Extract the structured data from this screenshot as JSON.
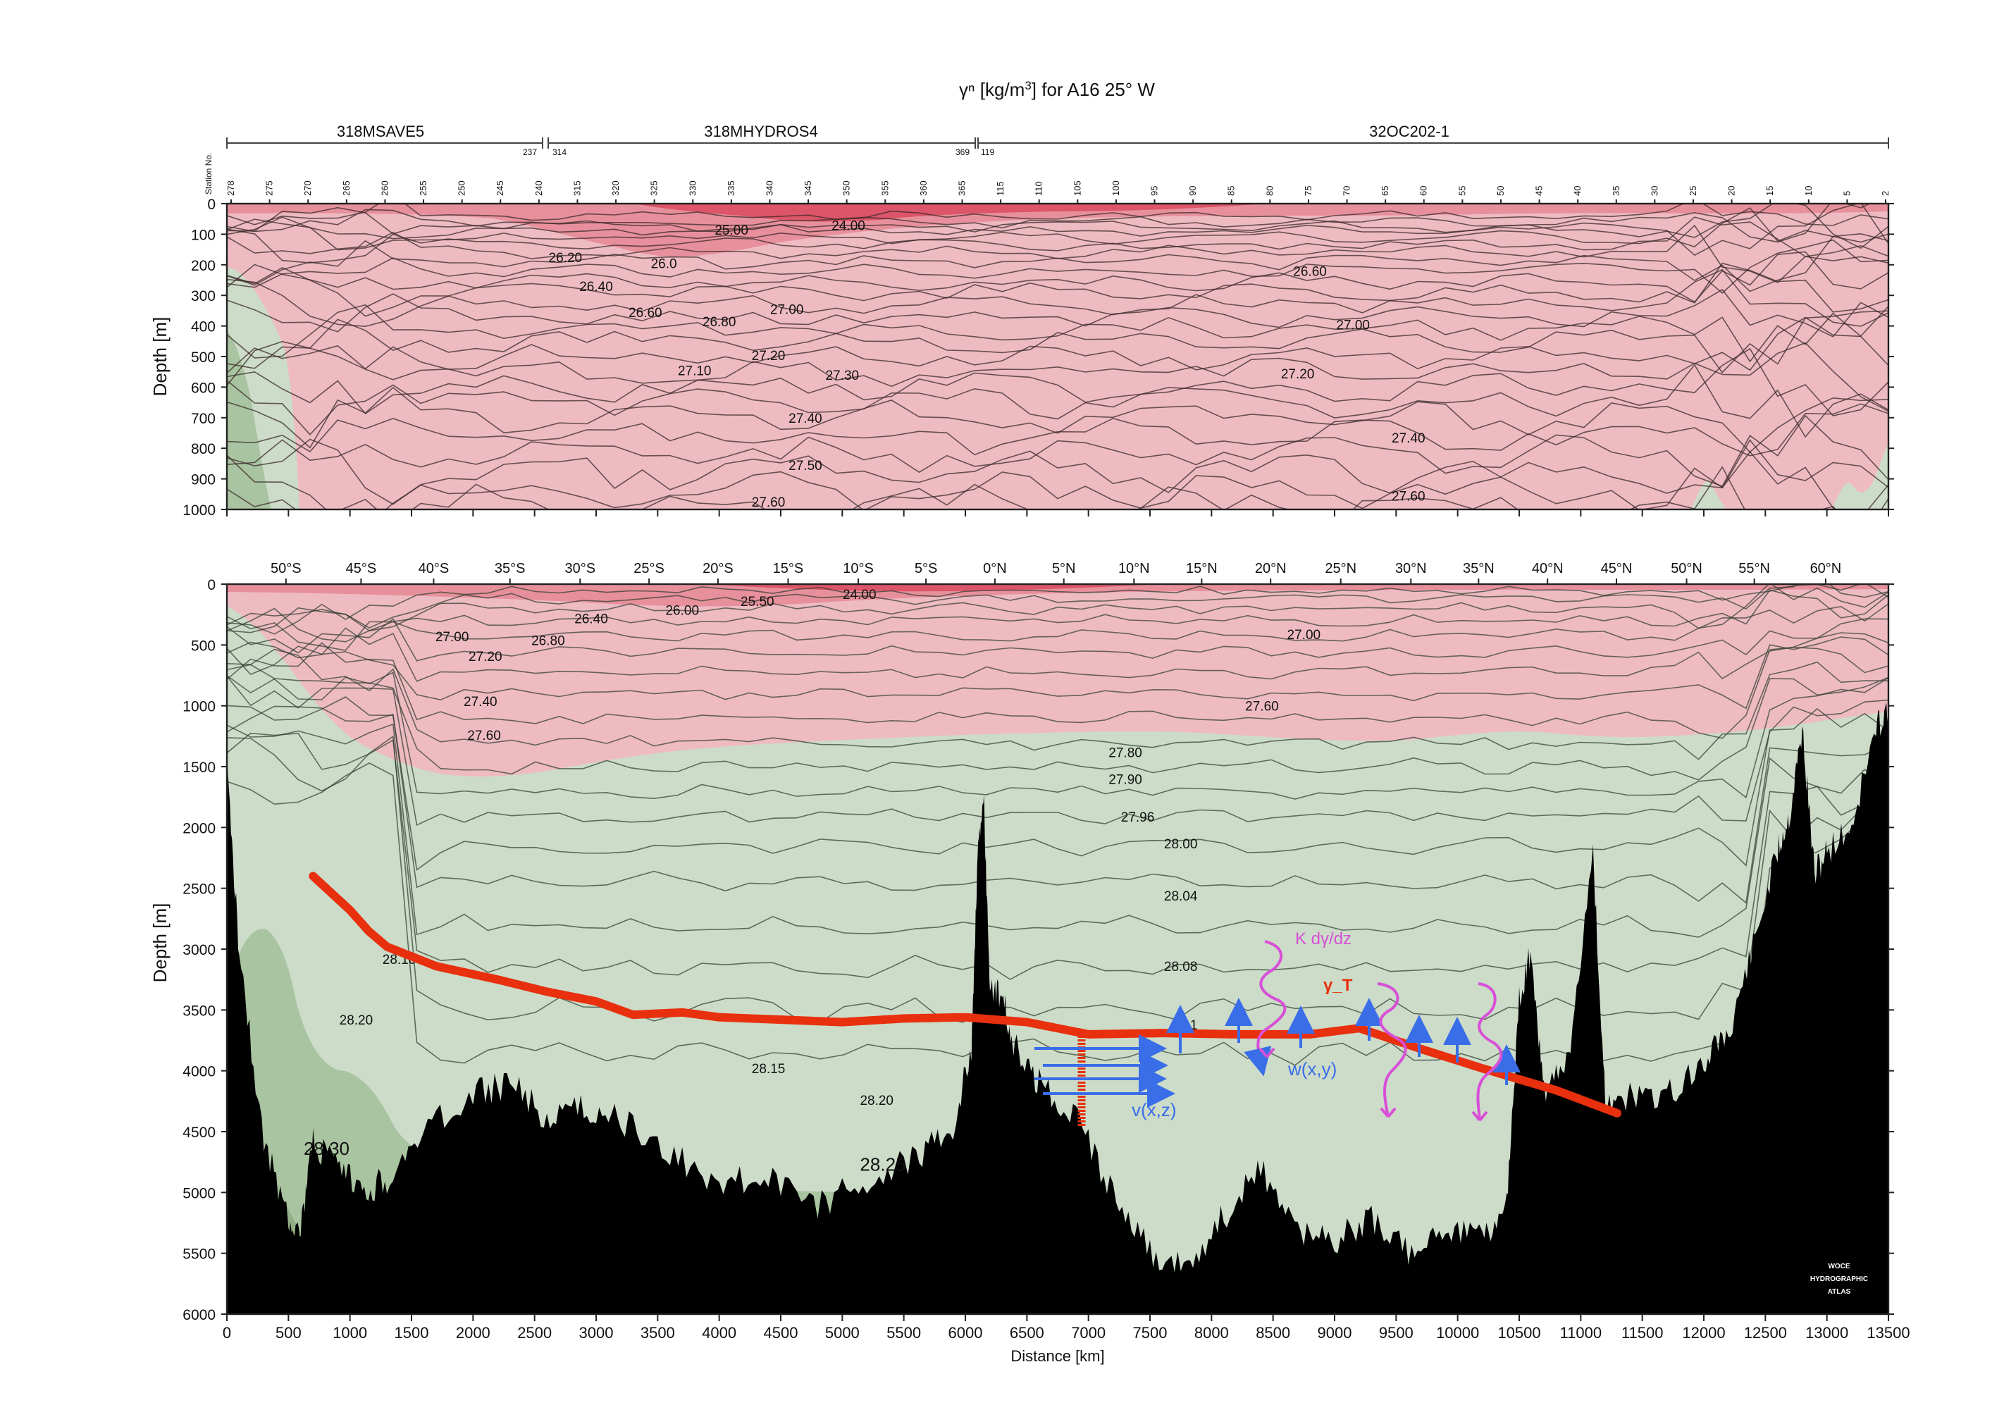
{
  "figure": {
    "title_prefix": "γⁿ [kg/m",
    "title_sup": "3",
    "title_suffix": "] for A16 25° W",
    "cruises": [
      {
        "label": "318MSAVE5",
        "end_station": "237"
      },
      {
        "label": "318MHYDROS4",
        "start_station": "314",
        "end_station": "369"
      },
      {
        "label": "32OC202-1",
        "start_station": "119"
      }
    ],
    "station_axis_label": "Station No.",
    "stations": [
      "278",
      "275",
      "270",
      "265",
      "260",
      "255",
      "250",
      "245",
      "240",
      "315",
      "320",
      "325",
      "330",
      "335",
      "340",
      "345",
      "350",
      "355",
      "360",
      "365",
      "115",
      "110",
      "105",
      "100",
      "95",
      "90",
      "85",
      "80",
      "75",
      "70",
      "65",
      "60",
      "55",
      "50",
      "45",
      "40",
      "35",
      "30",
      "25",
      "20",
      "15",
      "10",
      "5",
      "2"
    ],
    "watermark": [
      "WOCE",
      "HYDROGRAPHIC",
      "ATLAS"
    ]
  },
  "colors": {
    "surface_red": "#e0566a",
    "mid_red": "#e7909c",
    "light_red": "#eebbc3",
    "pale_green": "#ccdcc9",
    "mid_green": "#a9c4a0",
    "dark_green": "#93b087",
    "bottom": "#000000",
    "annotation_red": "#e8300e",
    "annotation_blue": "#3a6de8",
    "annotation_magenta": "#d84fd8"
  },
  "chart_data": [
    {
      "type": "heatmap",
      "panel": "upper",
      "xlabel": "",
      "ylabel": "Depth [m]",
      "xlim": [
        0,
        13500
      ],
      "ylim": [
        1000,
        0
      ],
      "yticks": [
        "0",
        "100",
        "200",
        "300",
        "400",
        "500",
        "600",
        "700",
        "800",
        "900",
        "1000"
      ],
      "contour_labels": [
        {
          "text": "25.00",
          "x": 4100,
          "depth": 85
        },
        {
          "text": "24.00",
          "x": 5050,
          "depth": 70
        },
        {
          "text": "26.20",
          "x": 2750,
          "depth": 175
        },
        {
          "text": "26.0",
          "x": 3550,
          "depth": 195
        },
        {
          "text": "26.40",
          "x": 3000,
          "depth": 270
        },
        {
          "text": "26.60",
          "x": 3400,
          "depth": 355
        },
        {
          "text": "26.80",
          "x": 4000,
          "depth": 385
        },
        {
          "text": "27.00",
          "x": 4550,
          "depth": 345
        },
        {
          "text": "27.20",
          "x": 4400,
          "depth": 495
        },
        {
          "text": "27.10",
          "x": 3800,
          "depth": 545
        },
        {
          "text": "27.30",
          "x": 5000,
          "depth": 560
        },
        {
          "text": "27.40",
          "x": 4700,
          "depth": 700
        },
        {
          "text": "27.50",
          "x": 4700,
          "depth": 855
        },
        {
          "text": "27.60",
          "x": 4400,
          "depth": 975
        },
        {
          "text": "26.60",
          "x": 8800,
          "depth": 220
        },
        {
          "text": "27.00",
          "x": 9150,
          "depth": 395
        },
        {
          "text": "27.20",
          "x": 8700,
          "depth": 555
        },
        {
          "text": "27.40",
          "x": 9600,
          "depth": 765
        },
        {
          "text": "27.60",
          "x": 9600,
          "depth": 955
        }
      ]
    },
    {
      "type": "heatmap",
      "panel": "lower",
      "xlabel": "Distance [km]",
      "ylabel": "Depth [m]",
      "xlim": [
        0,
        13500
      ],
      "ylim": [
        6000,
        0
      ],
      "xticks": [
        "0",
        "500",
        "1000",
        "1500",
        "2000",
        "2500",
        "3000",
        "3500",
        "4000",
        "4500",
        "5000",
        "5500",
        "6000",
        "6500",
        "7000",
        "7500",
        "8000",
        "8500",
        "9000",
        "9500",
        "10000",
        "10500",
        "11000",
        "11500",
        "12000",
        "12500",
        "13000",
        "13500"
      ],
      "yticks": [
        "0",
        "500",
        "1000",
        "1500",
        "2000",
        "2500",
        "3000",
        "3500",
        "4000",
        "4500",
        "5000",
        "5500",
        "6000"
      ],
      "latitude_ticks": [
        {
          "label": "50°S",
          "x": 480
        },
        {
          "label": "45°S",
          "x": 1090
        },
        {
          "label": "40°S",
          "x": 1680
        },
        {
          "label": "35°S",
          "x": 2300
        },
        {
          "label": "30°S",
          "x": 2870
        },
        {
          "label": "25°S",
          "x": 3430
        },
        {
          "label": "20°S",
          "x": 3990
        },
        {
          "label": "15°S",
          "x": 4560
        },
        {
          "label": "10°S",
          "x": 5130
        },
        {
          "label": "5°S",
          "x": 5680
        },
        {
          "label": "0°N",
          "x": 6240
        },
        {
          "label": "5°N",
          "x": 6800
        },
        {
          "label": "10°N",
          "x": 7370
        },
        {
          "label": "15°N",
          "x": 7920
        },
        {
          "label": "20°N",
          "x": 8480
        },
        {
          "label": "25°N",
          "x": 9050
        },
        {
          "label": "30°N",
          "x": 9620
        },
        {
          "label": "35°N",
          "x": 10170
        },
        {
          "label": "40°N",
          "x": 10730
        },
        {
          "label": "45°N",
          "x": 11290
        },
        {
          "label": "50°N",
          "x": 11860
        },
        {
          "label": "55°N",
          "x": 12410
        },
        {
          "label": "60°N",
          "x": 12990
        }
      ],
      "contour_labels": [
        {
          "text": "26.40",
          "x": 2960,
          "depth": 280
        },
        {
          "text": "26.00",
          "x": 3700,
          "depth": 210
        },
        {
          "text": "25.50",
          "x": 4310,
          "depth": 140
        },
        {
          "text": "24.00",
          "x": 5140,
          "depth": 80
        },
        {
          "text": "27.00",
          "x": 1830,
          "depth": 430
        },
        {
          "text": "26.80",
          "x": 2610,
          "depth": 460
        },
        {
          "text": "27.20",
          "x": 2100,
          "depth": 590
        },
        {
          "text": "27.40",
          "x": 2060,
          "depth": 960
        },
        {
          "text": "27.60",
          "x": 2090,
          "depth": 1240
        },
        {
          "text": "27.00",
          "x": 8750,
          "depth": 410
        },
        {
          "text": "27.60",
          "x": 8410,
          "depth": 1000
        },
        {
          "text": "27.80",
          "x": 7300,
          "depth": 1380
        },
        {
          "text": "27.90",
          "x": 7300,
          "depth": 1600
        },
        {
          "text": "27.96",
          "x": 7400,
          "depth": 1910
        },
        {
          "text": "28.00",
          "x": 7750,
          "depth": 2130
        },
        {
          "text": "28.04",
          "x": 7750,
          "depth": 2560
        },
        {
          "text": "28.08",
          "x": 7750,
          "depth": 3140
        },
        {
          "text": "28.10",
          "x": 1400,
          "depth": 3080
        },
        {
          "text": "28.20",
          "x": 1050,
          "depth": 3580
        },
        {
          "text": "28.15",
          "x": 4400,
          "depth": 3980
        },
        {
          "text": "28.20",
          "x": 5280,
          "depth": 4240
        },
        {
          "text": "28.30",
          "x": 810,
          "depth": 4650
        },
        {
          "text": "28.25",
          "x": 5330,
          "depth": 4780
        },
        {
          "text": "28.1",
          "x": 7780,
          "depth": 3620
        }
      ],
      "annotations": {
        "flux_label": "K dγ/dz",
        "surface_label": "γ_T",
        "upwelling_label": "w(x,y)",
        "transport_label": "v(x,z)",
        "gamma_T_surface": {
          "x": [
            700,
            1000,
            1150,
            1300,
            1700,
            2200,
            2600,
            3000,
            3300,
            3700,
            4000,
            4500,
            5000,
            5500,
            6000,
            6500,
            7000,
            7600,
            8200,
            8800,
            9200,
            9700,
            10200,
            10800,
            11300
          ],
          "depth": [
            2400,
            2680,
            2850,
            2980,
            3140,
            3250,
            3350,
            3430,
            3540,
            3520,
            3560,
            3580,
            3600,
            3570,
            3560,
            3600,
            3700,
            3690,
            3700,
            3700,
            3650,
            3820,
            3980,
            4160,
            4350
          ]
        }
      }
    }
  ]
}
